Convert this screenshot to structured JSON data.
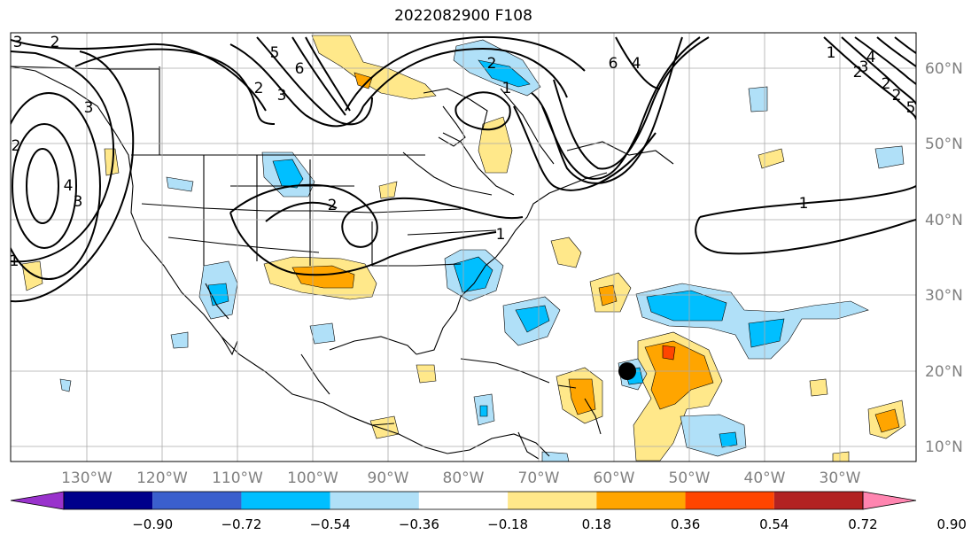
{
  "title": "2022082900 F108",
  "lat_labels": [
    "60°N",
    "50°N",
    "40°N",
    "30°N",
    "20°N",
    "10°N"
  ],
  "lon_labels": [
    "130°W",
    "120°W",
    "110°W",
    "100°W",
    "90°W",
    "80°W",
    "70°W",
    "60°W",
    "50°W",
    "40°W",
    "30°W"
  ],
  "colorbar": {
    "ticks": [
      "−0.90",
      "−0.72",
      "−0.54",
      "−0.36",
      "−0.18",
      "0.18",
      "0.36",
      "0.54",
      "0.72",
      "0.90"
    ],
    "colors": [
      "#9932cc",
      "#00008b",
      "#3a5fcd",
      "#00bfff",
      "#b0e0f8",
      "#ffffff",
      "#ffe88a",
      "#ffa500",
      "#ff4500",
      "#b22222",
      "#ff85b0"
    ]
  },
  "contour_labels": [
    "3",
    "2",
    "4",
    "3",
    "2",
    "1",
    "3",
    "2",
    "5",
    "6",
    "3",
    "2",
    "4",
    "6",
    "1",
    "2",
    "1",
    "1",
    "2",
    "1",
    "4",
    "3",
    "2",
    "2",
    "5"
  ],
  "storm_marker": "black-dot"
}
